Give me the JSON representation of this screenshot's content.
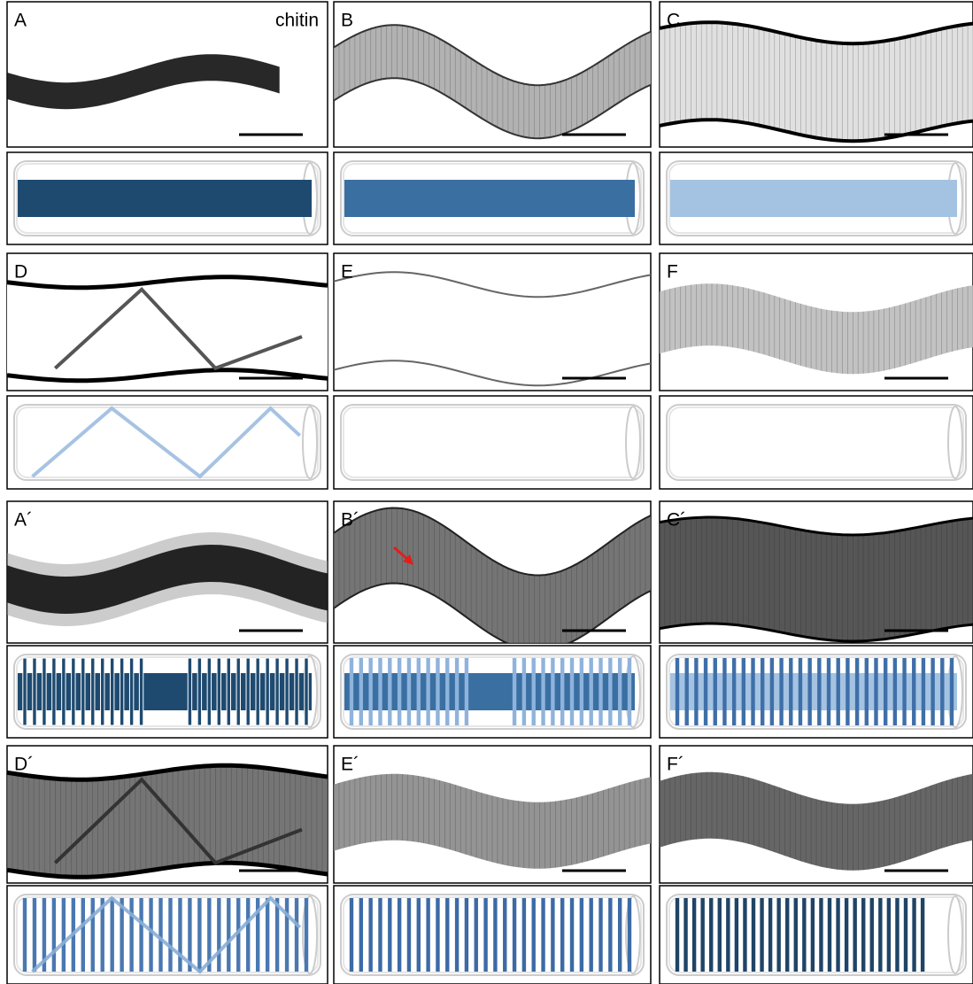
{
  "stain_label": "chitin",
  "panels": [
    {
      "label": "A"
    },
    {
      "label": "B"
    },
    {
      "label": "C"
    },
    {
      "label": "D"
    },
    {
      "label": "E"
    },
    {
      "label": "F"
    },
    {
      "label": "A´"
    },
    {
      "label": "B´"
    },
    {
      "label": "C´"
    },
    {
      "label": "D´"
    },
    {
      "label": "E´"
    },
    {
      "label": "F´"
    }
  ]
}
